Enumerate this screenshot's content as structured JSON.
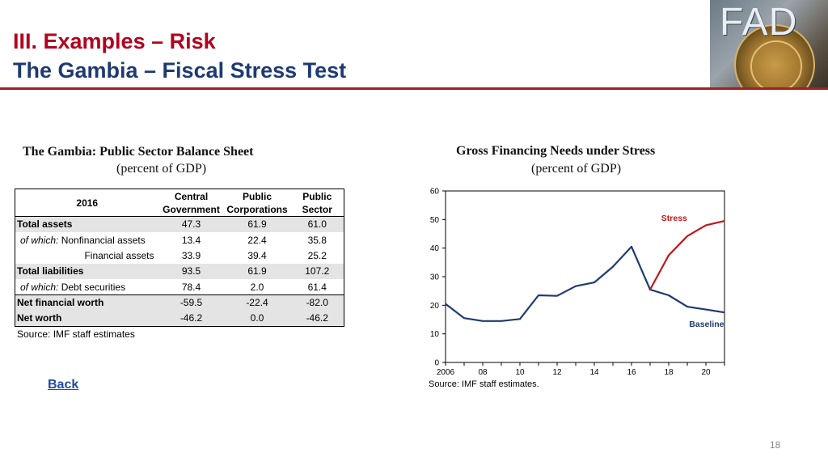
{
  "header": {
    "title_line1": "III. Examples – Risk",
    "title_line2": "The Gambia – Fiscal Stress Test",
    "logo_text": "FAD",
    "accent_color": "#a31e22"
  },
  "table": {
    "title": "The Gambia: Public Sector Balance Sheet",
    "subtitle": "(percent of GDP)",
    "year_header": "2016",
    "col_headers": [
      [
        "Central",
        "Government"
      ],
      [
        "Public",
        "Corporations"
      ],
      [
        "Public",
        "Sector"
      ]
    ],
    "rows": [
      {
        "prefix": "",
        "label": "Total assets",
        "values": [
          "47.3",
          "61.9",
          "61.0"
        ]
      },
      {
        "prefix": "of which:",
        "label": "Nonfinancial assets",
        "values": [
          "13.4",
          "22.4",
          "35.8"
        ]
      },
      {
        "prefix": "",
        "label": "Financial assets",
        "values": [
          "33.9",
          "39.4",
          "25.2"
        ]
      },
      {
        "prefix": "",
        "label": "Total liabilities",
        "values": [
          "93.5",
          "61.9",
          "107.2"
        ]
      },
      {
        "prefix": "of which:",
        "label": "Debt securities",
        "values": [
          "78.4",
          "2.0",
          "61.4"
        ]
      },
      {
        "prefix": "",
        "label": "Net financial worth",
        "values": [
          "-59.5",
          "-22.4",
          "-82.0"
        ]
      },
      {
        "prefix": "",
        "label": "Net worth",
        "values": [
          "-46.2",
          "0.0",
          "-46.2"
        ]
      }
    ],
    "source": "Source: IMF staff estimates"
  },
  "back_link": "Back",
  "chart_data": {
    "type": "line",
    "title": "Gross Financing Needs under Stress",
    "subtitle": "(percent of GDP)",
    "xlabel": "",
    "ylabel": "",
    "xlim": [
      2006,
      2021
    ],
    "ylim": [
      0,
      60
    ],
    "yticks": [
      0,
      10,
      20,
      30,
      40,
      50,
      60
    ],
    "xticks": [
      2006,
      2008,
      2010,
      2012,
      2014,
      2016,
      2018,
      2020
    ],
    "xtick_labels": [
      "2006",
      "08",
      "10",
      "12",
      "14",
      "16",
      "18",
      "20"
    ],
    "grid": false,
    "series": [
      {
        "name": "Baseline",
        "color": "#1f3a72",
        "x": [
          2006,
          2007,
          2008,
          2009,
          2010,
          2011,
          2012,
          2013,
          2014,
          2015,
          2016,
          2017,
          2018,
          2019,
          2020,
          2021
        ],
        "values": [
          20.5,
          15.5,
          14.5,
          14.5,
          15.2,
          23.5,
          23.3,
          26.7,
          28.0,
          33.5,
          40.5,
          25.5,
          23.5,
          19.5,
          18.5,
          17.5
        ]
      },
      {
        "name": "Stress",
        "color": "#c0161c",
        "x": [
          2017,
          2018,
          2019,
          2020,
          2021
        ],
        "values": [
          25.5,
          37.5,
          44.2,
          48.0,
          49.5
        ]
      }
    ],
    "source": "Source: IMF staff estimates."
  },
  "page_number": "18"
}
